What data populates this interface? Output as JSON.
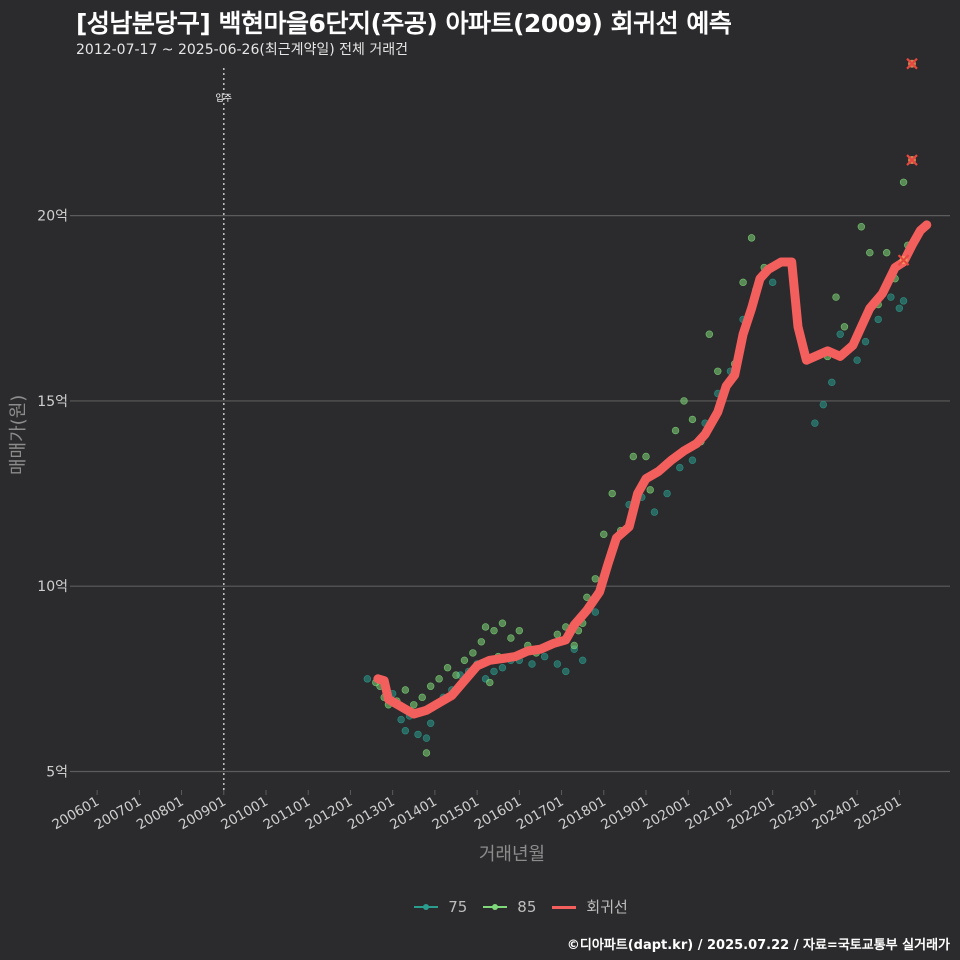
{
  "title": "[성남분당구] 백현마을6단지(주공) 아파트(2009) 회귀선 예측",
  "subtitle": "2012-07-17 ~ 2025-06-26(최근계약일) 전체 거래건",
  "footer": "©디아파트(dapt.kr) / 2025.07.22 / 자료=국토교통부 실거래가",
  "colors": {
    "background": "#2b2a2c",
    "grid": "#5c5c5c",
    "series_75": "#2a9d8f",
    "series_85": "#7fd97a",
    "regression": "#f25f5c",
    "outlier": "#e8473f",
    "vline": "#bdbdbd"
  },
  "chart_data": {
    "type": "scatter",
    "xlabel": "거래년월",
    "ylabel": "매매가(원)",
    "x_unit": "decimal year",
    "y_unit": "억",
    "xlim": [
      2005.5,
      2026.2
    ],
    "ylim": [
      4.5,
      24.2
    ],
    "y_ticks": [
      5,
      10,
      15,
      20
    ],
    "y_tick_labels": [
      "5억",
      "10억",
      "15억",
      "20억"
    ],
    "x_ticks": [
      2006,
      2007,
      2008,
      2009,
      2010,
      2011,
      2012,
      2013,
      2014,
      2015,
      2016,
      2017,
      2018,
      2019,
      2020,
      2021,
      2022,
      2023,
      2024,
      2025
    ],
    "x_tick_labels": [
      "200601",
      "200701",
      "200801",
      "200901",
      "201001",
      "201101",
      "201201",
      "201301",
      "201401",
      "201501",
      "201601",
      "201701",
      "201801",
      "201901",
      "202001",
      "202101",
      "202201",
      "202301",
      "202401",
      "202501"
    ],
    "vline": {
      "x": 2009.0,
      "label": "입주"
    },
    "legend": [
      {
        "key": "75",
        "label": "75"
      },
      {
        "key": "85",
        "label": "85"
      },
      {
        "key": "reg",
        "label": "회귀선"
      }
    ],
    "series": [
      {
        "name": "75",
        "points": [
          [
            2013.0,
            7.1
          ],
          [
            2013.2,
            6.4
          ],
          [
            2013.3,
            6.1
          ],
          [
            2013.4,
            6.5
          ],
          [
            2013.6,
            6.0
          ],
          [
            2013.7,
            6.6
          ],
          [
            2013.9,
            6.3
          ],
          [
            2014.0,
            6.8
          ],
          [
            2014.2,
            7.0
          ],
          [
            2014.4,
            7.2
          ],
          [
            2014.6,
            7.6
          ],
          [
            2014.8,
            7.7
          ],
          [
            2015.0,
            7.9
          ],
          [
            2015.2,
            7.5
          ],
          [
            2015.4,
            7.7
          ],
          [
            2015.6,
            7.8
          ],
          [
            2015.8,
            8.0
          ],
          [
            2016.0,
            8.0
          ],
          [
            2016.3,
            7.9
          ],
          [
            2016.6,
            8.1
          ],
          [
            2016.9,
            7.9
          ],
          [
            2017.1,
            7.7
          ],
          [
            2017.3,
            8.3
          ],
          [
            2017.5,
            8.0
          ],
          [
            2017.8,
            9.3
          ],
          [
            2018.0,
            10.2
          ],
          [
            2018.3,
            11.3
          ],
          [
            2018.6,
            12.2
          ],
          [
            2018.9,
            12.4
          ],
          [
            2019.2,
            12.0
          ],
          [
            2019.5,
            12.5
          ],
          [
            2019.8,
            13.2
          ],
          [
            2020.1,
            13.4
          ],
          [
            2020.4,
            14.4
          ],
          [
            2020.7,
            15.2
          ],
          [
            2021.0,
            15.8
          ],
          [
            2021.3,
            17.2
          ],
          [
            2021.6,
            18.0
          ],
          [
            2022.0,
            18.2
          ],
          [
            2023.0,
            14.4
          ],
          [
            2023.2,
            14.9
          ],
          [
            2023.4,
            15.5
          ],
          [
            2023.6,
            16.8
          ],
          [
            2023.8,
            16.4
          ],
          [
            2024.0,
            16.1
          ],
          [
            2024.2,
            16.6
          ],
          [
            2024.5,
            17.2
          ],
          [
            2024.8,
            17.8
          ],
          [
            2025.0,
            17.5
          ],
          [
            2025.1,
            17.7
          ],
          [
            2012.4,
            7.5
          ],
          [
            2013.8,
            5.9
          ]
        ]
      },
      {
        "name": "85",
        "points": [
          [
            2012.6,
            7.4
          ],
          [
            2012.7,
            7.3
          ],
          [
            2012.8,
            7.0
          ],
          [
            2012.9,
            6.8
          ],
          [
            2013.1,
            6.9
          ],
          [
            2013.3,
            7.2
          ],
          [
            2013.5,
            6.8
          ],
          [
            2013.7,
            7.0
          ],
          [
            2013.8,
            5.5
          ],
          [
            2013.9,
            7.3
          ],
          [
            2014.1,
            7.5
          ],
          [
            2014.3,
            7.8
          ],
          [
            2014.5,
            7.6
          ],
          [
            2014.7,
            8.0
          ],
          [
            2014.9,
            8.2
          ],
          [
            2015.1,
            8.5
          ],
          [
            2015.2,
            8.9
          ],
          [
            2015.4,
            8.8
          ],
          [
            2015.5,
            8.1
          ],
          [
            2015.6,
            9.0
          ],
          [
            2015.8,
            8.6
          ],
          [
            2016.0,
            8.8
          ],
          [
            2016.2,
            8.4
          ],
          [
            2016.4,
            8.2
          ],
          [
            2016.7,
            8.4
          ],
          [
            2016.9,
            8.7
          ],
          [
            2017.1,
            8.9
          ],
          [
            2017.3,
            8.4
          ],
          [
            2017.4,
            8.8
          ],
          [
            2017.6,
            9.7
          ],
          [
            2017.8,
            10.2
          ],
          [
            2018.0,
            11.4
          ],
          [
            2018.2,
            12.5
          ],
          [
            2018.4,
            11.5
          ],
          [
            2018.7,
            13.5
          ],
          [
            2019.0,
            13.5
          ],
          [
            2019.1,
            12.6
          ],
          [
            2019.3,
            13.1
          ],
          [
            2019.7,
            14.2
          ],
          [
            2019.9,
            15.0
          ],
          [
            2020.1,
            14.5
          ],
          [
            2020.3,
            13.9
          ],
          [
            2020.5,
            16.8
          ],
          [
            2020.7,
            15.8
          ],
          [
            2021.1,
            16.0
          ],
          [
            2021.3,
            18.2
          ],
          [
            2021.5,
            19.4
          ],
          [
            2021.8,
            18.6
          ],
          [
            2023.3,
            16.2
          ],
          [
            2023.5,
            17.8
          ],
          [
            2023.7,
            17.0
          ],
          [
            2024.1,
            19.7
          ],
          [
            2024.3,
            19.0
          ],
          [
            2024.5,
            17.6
          ],
          [
            2024.7,
            19.0
          ],
          [
            2024.9,
            18.3
          ],
          [
            2025.1,
            20.9
          ],
          [
            2025.2,
            19.2
          ],
          [
            2017.5,
            9.0
          ],
          [
            2015.3,
            7.4
          ]
        ]
      },
      {
        "name": "회귀선",
        "points": [
          [
            2012.65,
            7.5
          ],
          [
            2012.8,
            7.45
          ],
          [
            2012.9,
            6.95
          ],
          [
            2013.2,
            6.75
          ],
          [
            2013.5,
            6.55
          ],
          [
            2013.8,
            6.65
          ],
          [
            2014.1,
            6.85
          ],
          [
            2014.4,
            7.05
          ],
          [
            2014.7,
            7.45
          ],
          [
            2015.0,
            7.85
          ],
          [
            2015.3,
            8.0
          ],
          [
            2015.6,
            8.05
          ],
          [
            2015.9,
            8.1
          ],
          [
            2016.2,
            8.25
          ],
          [
            2016.5,
            8.3
          ],
          [
            2016.8,
            8.45
          ],
          [
            2017.1,
            8.55
          ],
          [
            2017.3,
            8.95
          ],
          [
            2017.6,
            9.35
          ],
          [
            2017.9,
            9.85
          ],
          [
            2018.1,
            10.6
          ],
          [
            2018.3,
            11.3
          ],
          [
            2018.6,
            11.6
          ],
          [
            2018.8,
            12.5
          ],
          [
            2019.0,
            12.9
          ],
          [
            2019.3,
            13.1
          ],
          [
            2019.6,
            13.4
          ],
          [
            2019.9,
            13.65
          ],
          [
            2020.2,
            13.85
          ],
          [
            2020.4,
            14.1
          ],
          [
            2020.7,
            14.7
          ],
          [
            2020.9,
            15.4
          ],
          [
            2021.1,
            15.7
          ],
          [
            2021.3,
            16.8
          ],
          [
            2021.5,
            17.5
          ],
          [
            2021.7,
            18.3
          ],
          [
            2021.9,
            18.55
          ],
          [
            2022.2,
            18.75
          ],
          [
            2022.45,
            18.75
          ],
          [
            2022.6,
            17.0
          ],
          [
            2022.8,
            16.1
          ],
          [
            2023.1,
            16.25
          ],
          [
            2023.3,
            16.35
          ],
          [
            2023.6,
            16.2
          ],
          [
            2023.9,
            16.5
          ],
          [
            2024.1,
            17.0
          ],
          [
            2024.3,
            17.5
          ],
          [
            2024.6,
            17.9
          ],
          [
            2024.9,
            18.6
          ],
          [
            2025.1,
            18.75
          ],
          [
            2025.3,
            19.2
          ],
          [
            2025.5,
            19.6
          ],
          [
            2025.65,
            19.75
          ]
        ]
      }
    ],
    "outliers": [
      [
        2025.3,
        24.1
      ],
      [
        2025.3,
        21.5
      ],
      [
        2025.1,
        18.8
      ]
    ]
  }
}
